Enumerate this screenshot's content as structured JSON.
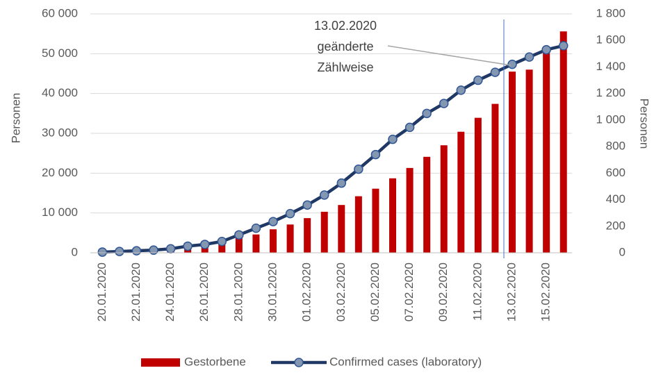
{
  "chart_data": {
    "type": "combo",
    "y_label": "Personen",
    "y2_label": "Personen",
    "categories": [
      "20.01.2020",
      null,
      "22.01.2020",
      null,
      "24.01.2020",
      null,
      "26.01.2020",
      null,
      "28.01.2020",
      null,
      "30.01.2020",
      null,
      "01.02.2020",
      null,
      "03.02.2020",
      null,
      "05.02.2020",
      null,
      "07.02.2020",
      null,
      "09.02.2020",
      null,
      "11.02.2020",
      null,
      "13.02.2020",
      null,
      "15.02.2020",
      null
    ],
    "series": [
      {
        "name": "Gestorbene",
        "type": "bar",
        "color": "#c00000",
        "values": [
          280,
          440,
          570,
          830,
          1000,
          1300,
          1800,
          2700,
          4000,
          4600,
          5900,
          7100,
          8700,
          10300,
          12000,
          14200,
          16100,
          18700,
          21300,
          24100,
          27000,
          30400,
          33900,
          37400,
          45500,
          46000,
          50500,
          55600
        ]
      },
      {
        "name": "Confirmed cases (laboratory)",
        "type": "line",
        "axis": "y2",
        "color": "#1f3864",
        "marker_color": "#8497b0",
        "values": [
          5,
          10,
          15,
          20,
          30,
          50,
          63,
          85,
          135,
          185,
          235,
          295,
          360,
          435,
          525,
          630,
          740,
          855,
          945,
          1050,
          1125,
          1225,
          1300,
          1360,
          1420,
          1475,
          1530,
          1560
        ]
      }
    ],
    "ylim": [
      0,
      60000
    ],
    "yticks": [
      0,
      {
        "value": 10000,
        "label": "10 000"
      },
      {
        "value": 20000,
        "label": "20 000"
      },
      {
        "value": 30000,
        "label": "30 000"
      },
      {
        "value": 40000,
        "label": "40 000"
      },
      {
        "value": 50000,
        "label": "50 000"
      },
      {
        "value": 60000,
        "label": "60 000"
      }
    ],
    "y2lim": [
      0,
      1800
    ],
    "y2ticks": [
      0,
      200,
      400,
      600,
      800,
      {
        "value": 1000,
        "label": "1 000"
      },
      {
        "value": 1200,
        "label": "1 200"
      },
      {
        "value": 1400,
        "label": "1 400"
      },
      {
        "value": 1600,
        "label": "1 600"
      },
      {
        "value": 1800,
        "label": "1 800"
      }
    ],
    "grid": true,
    "legend": "bottom",
    "annotation": {
      "lines": [
        "13.02.2020",
        "geänderte",
        "Zählweise"
      ]
    }
  }
}
